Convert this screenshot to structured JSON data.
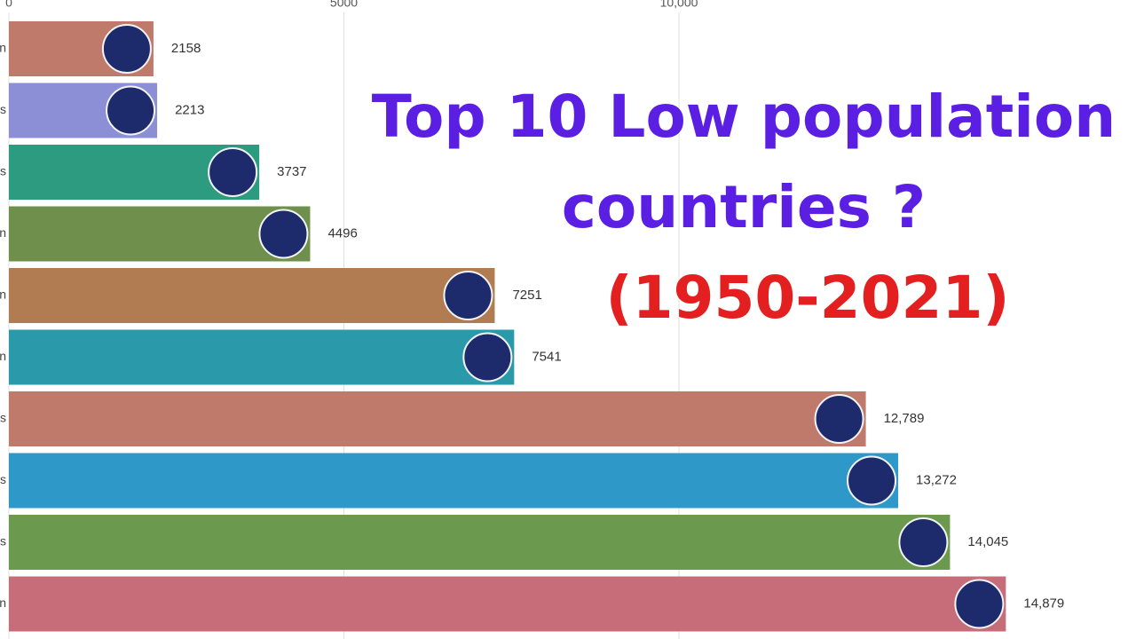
{
  "chart_data": {
    "type": "bar",
    "title_lines": [
      "Top 10 Low population",
      "countries ?"
    ],
    "subtitle": "(1950-2021)",
    "title_color": "#5b1fe3",
    "subtitle_color": "#e3201f",
    "categories": [
      "n",
      "s",
      "s",
      "n",
      "n",
      "n",
      "s",
      "s",
      "s",
      "n"
    ],
    "values": [
      2158,
      2213,
      3737,
      4496,
      7251,
      7541,
      12789,
      13272,
      14045,
      14879
    ],
    "value_labels": [
      "2158",
      "2213",
      "3737",
      "4496",
      "7251",
      "7541",
      "12,789",
      "13,272",
      "14,045",
      "14,879"
    ],
    "colors": [
      "#c07a6c",
      "#8c8ed6",
      "#2c9b80",
      "#6f8f4c",
      "#b17c52",
      "#2a9aab",
      "#c07a6c",
      "#2e98c8",
      "#6b9a4f",
      "#c76d79"
    ],
    "xlim": [
      0,
      16800
    ],
    "xticks": [
      0,
      5000,
      {
        "value": 10000,
        "label": "10,000"
      }
    ],
    "grid": true
  }
}
